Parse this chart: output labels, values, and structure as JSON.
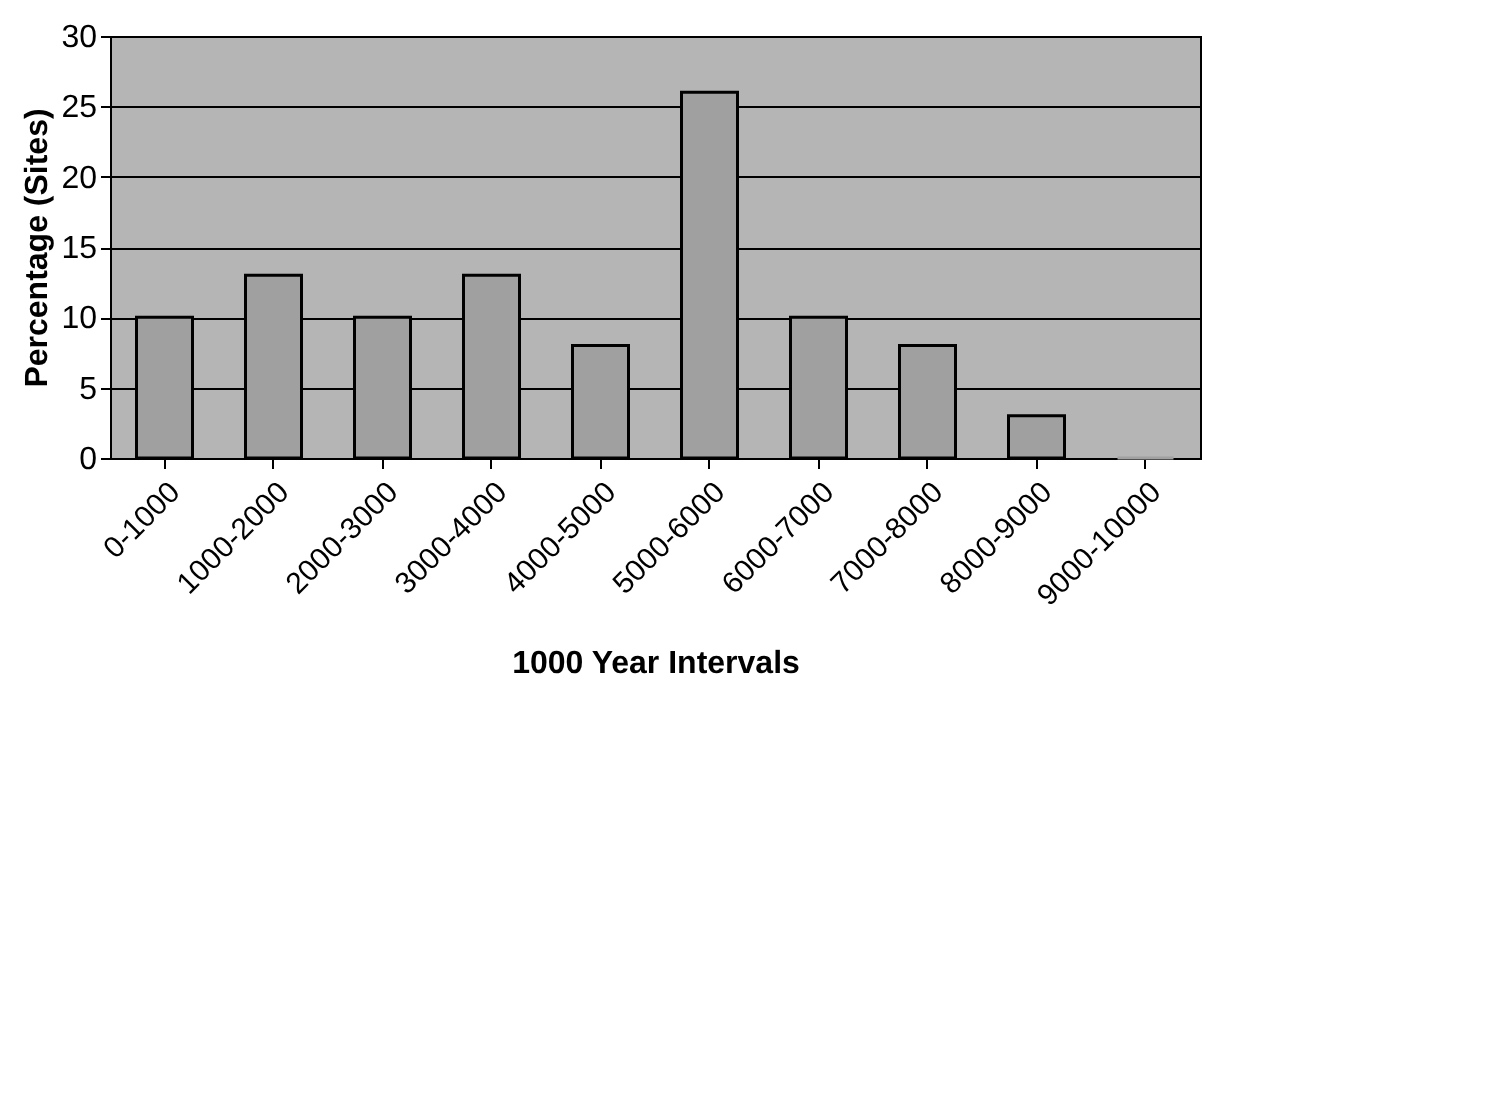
{
  "chart_data": {
    "type": "bar",
    "xlabel": "1000 Year Intervals",
    "ylabel": "Percentage (Sites)",
    "categories": [
      "0-1000",
      "1000-2000",
      "2000-3000",
      "3000-4000",
      "4000-5000",
      "5000-6000",
      "6000-7000",
      "7000-8000",
      "8000-9000",
      "9000-10000"
    ],
    "values": [
      10,
      13,
      10,
      13,
      8,
      26,
      10,
      8,
      3,
      0
    ],
    "color": "#a0a0a0",
    "ylim": [
      0,
      30
    ],
    "yticks": [
      0,
      5,
      10,
      15,
      20,
      25,
      30
    ],
    "grid": "y"
  }
}
